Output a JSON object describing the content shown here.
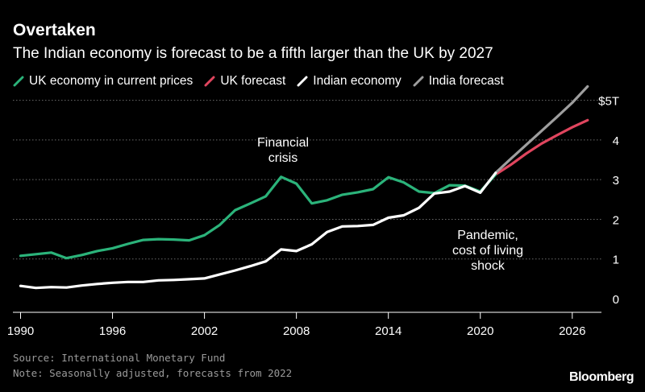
{
  "title": "Overtaken",
  "subtitle": "The Indian economy is forecast to be a fifth larger than the UK by 2027",
  "legend": [
    {
      "label": "UK economy in current prices",
      "color": "#2bb37a"
    },
    {
      "label": "UK forecast",
      "color": "#e0455e"
    },
    {
      "label": "Indian economy",
      "color": "#ffffff"
    },
    {
      "label": "India forecast",
      "color": "#9e9e9e"
    }
  ],
  "annotations": {
    "financial_crisis": [
      "Financial",
      "crisis"
    ],
    "pandemic": [
      "Pandemic,",
      "cost of living",
      "shock"
    ]
  },
  "source": "Source: International Monetary Fund",
  "note": "Note: Seasonally adjusted, forecasts from 2022",
  "brand": "Bloomberg",
  "chart_data": {
    "type": "line",
    "title": "Overtaken",
    "subtitle": "The Indian economy is forecast to be a fifth larger than the UK by 2027",
    "xlim": [
      1989.5,
      2027.8
    ],
    "ylim": [
      0,
      5.5
    ],
    "x_ticks": [
      1990,
      1996,
      2002,
      2008,
      2014,
      2020,
      2026
    ],
    "x_tick_labels": [
      "1990",
      "1996",
      "2002",
      "2008",
      "2014",
      "2020",
      "2026"
    ],
    "y_ticks": [
      0,
      1,
      2,
      3,
      4,
      5
    ],
    "y_tick_labels": [
      "0",
      "1",
      "2",
      "3",
      "4",
      "$5T"
    ],
    "y_tick_position": "right",
    "grid": "horizontal dotted",
    "legend_position": "top",
    "series": [
      {
        "name": "UK economy in current prices",
        "color": "#2bb37a",
        "x": [
          1990,
          1991,
          1992,
          1993,
          1994,
          1995,
          1996,
          1997,
          1998,
          1999,
          2000,
          2001,
          2002,
          2003,
          2004,
          2005,
          2006,
          2007,
          2008,
          2009,
          2010,
          2011,
          2012,
          2013,
          2014,
          2015,
          2016,
          2017,
          2018,
          2019,
          2020,
          2021
        ],
        "y": [
          1.08,
          1.12,
          1.16,
          1.02,
          1.1,
          1.2,
          1.27,
          1.38,
          1.48,
          1.5,
          1.49,
          1.47,
          1.6,
          1.86,
          2.23,
          2.4,
          2.58,
          3.07,
          2.9,
          2.4,
          2.48,
          2.62,
          2.68,
          2.76,
          3.06,
          2.93,
          2.7,
          2.66,
          2.86,
          2.85,
          2.7,
          3.13
        ]
      },
      {
        "name": "UK forecast",
        "color": "#e0455e",
        "x": [
          2021,
          2022,
          2023,
          2024,
          2025,
          2026,
          2027
        ],
        "y": [
          3.13,
          3.38,
          3.66,
          3.91,
          4.12,
          4.32,
          4.5
        ]
      },
      {
        "name": "Indian economy",
        "color": "#ffffff",
        "x": [
          1990,
          1991,
          1992,
          1993,
          1994,
          1995,
          1996,
          1997,
          1998,
          1999,
          2000,
          2001,
          2002,
          2003,
          2004,
          2005,
          2006,
          2007,
          2008,
          2009,
          2010,
          2011,
          2012,
          2013,
          2014,
          2015,
          2016,
          2017,
          2018,
          2019,
          2020,
          2021
        ],
        "y": [
          0.32,
          0.27,
          0.29,
          0.28,
          0.33,
          0.37,
          0.4,
          0.42,
          0.42,
          0.46,
          0.47,
          0.49,
          0.51,
          0.61,
          0.71,
          0.82,
          0.94,
          1.24,
          1.2,
          1.37,
          1.68,
          1.82,
          1.83,
          1.86,
          2.04,
          2.1,
          2.29,
          2.65,
          2.7,
          2.84,
          2.67,
          3.17
        ]
      },
      {
        "name": "India forecast",
        "color": "#9e9e9e",
        "x": [
          2021,
          2022,
          2023,
          2024,
          2025,
          2026,
          2027
        ],
        "y": [
          3.17,
          3.53,
          3.88,
          4.23,
          4.58,
          4.94,
          5.35
        ]
      }
    ],
    "annotations": [
      {
        "text": "Financial crisis",
        "x": 2008,
        "y": 3.55
      },
      {
        "text": "Pandemic, cost of living shock",
        "x": 2020,
        "y": 1.25
      }
    ]
  }
}
